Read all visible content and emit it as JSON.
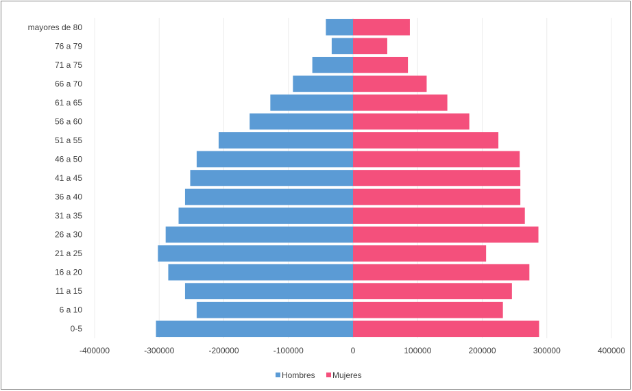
{
  "chart_data": {
    "type": "bar",
    "orientation": "horizontal",
    "layout": "population-pyramid",
    "categories": [
      "0-5",
      "6 a 10",
      "11 a 15",
      "16 a 20",
      "21 a 25",
      "26 a 30",
      "31 a 35",
      "36 a 40",
      "41 a 45",
      "46 a 50",
      "51 a 55",
      "56 a 60",
      "61 a 65",
      "66 a 70",
      "71 a 75",
      "76 a 79",
      "mayores de 80"
    ],
    "series": [
      {
        "name": "Hombres",
        "color": "#5b9bd5",
        "values": [
          -305000,
          -242000,
          -260000,
          -286000,
          -302000,
          -290000,
          -270000,
          -260000,
          -252000,
          -242000,
          -208000,
          -160000,
          -128000,
          -93000,
          -63000,
          -33000,
          -42000
        ]
      },
      {
        "name": "Mujeres",
        "color": "#f4507c",
        "values": [
          288000,
          232000,
          246000,
          273000,
          206000,
          287000,
          266000,
          259000,
          259000,
          258000,
          225000,
          180000,
          146000,
          114000,
          85000,
          53000,
          88000
        ]
      }
    ],
    "x_ticks": [
      "-400000",
      "-300000",
      "-200000",
      "-100000",
      "0",
      "100000",
      "200000",
      "300000",
      "400000"
    ],
    "xlim": [
      -400000,
      400000
    ],
    "grid": true,
    "legend_position": "bottom",
    "title": "",
    "xlabel": "",
    "ylabel": ""
  }
}
